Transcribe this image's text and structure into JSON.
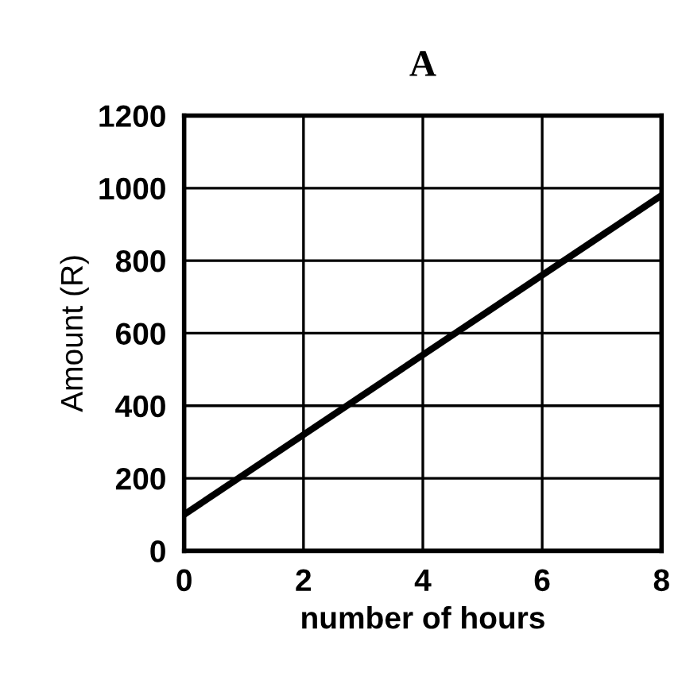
{
  "chart_data": {
    "type": "line",
    "title": "A",
    "xlabel": "number of hours",
    "ylabel": "Amount (R)",
    "x": [
      0,
      8
    ],
    "series": [
      {
        "color": "#000000",
        "values": [
          100,
          980
        ]
      }
    ],
    "xlim": [
      0,
      8
    ],
    "xticks": [
      0,
      2,
      4,
      6,
      8
    ],
    "ylim": [
      0,
      1200
    ],
    "yticks": [
      0,
      200,
      400,
      600,
      800,
      1000,
      1200
    ],
    "grid": true,
    "marker": "none",
    "line_style": "solid"
  }
}
